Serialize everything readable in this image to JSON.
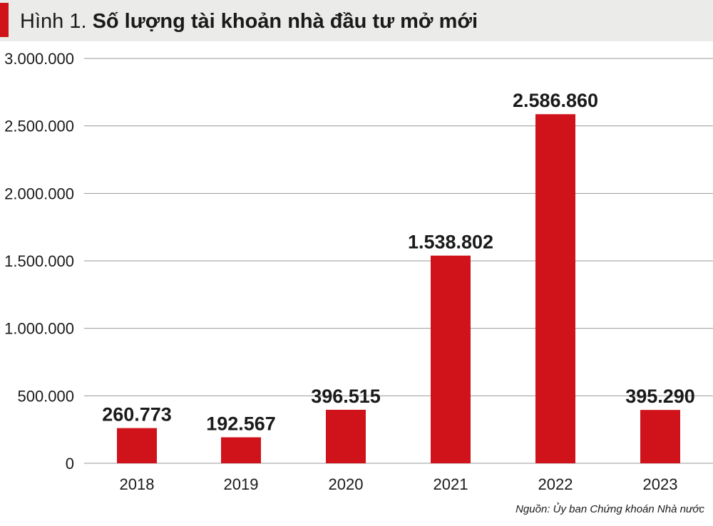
{
  "title_prefix": "Hình 1.",
  "title": "Số lượng tài khoản nhà đầu tư mở mới",
  "source": "Nguồn: Ủy ban Chứng khoán Nhà nước",
  "colors": {
    "bar": "#d0121b",
    "accent": "#d0121b",
    "grid": "#9a9a9a",
    "title_bg": "#ebebea"
  },
  "chart_data": {
    "type": "bar",
    "title": "Số lượng tài khoản nhà đầu tư mở mới",
    "categories": [
      "2018",
      "2019",
      "2020",
      "2021",
      "2022",
      "2023"
    ],
    "values": [
      260773,
      192567,
      396515,
      1538802,
      2586860,
      395290
    ],
    "data_labels": [
      "260.773",
      "192.567",
      "396.515",
      "1.538.802",
      "2.586.860",
      "395.290"
    ],
    "ylim": [
      0,
      3000000
    ],
    "yticks": [
      0,
      500000,
      1000000,
      1500000,
      2000000,
      2500000,
      3000000
    ],
    "ytick_labels": [
      "0",
      "500.000",
      "1.000.000",
      "1.500.000",
      "2.000.000",
      "2.500.000",
      "3.000.000"
    ],
    "xlabel": "",
    "ylabel": "",
    "grid": true,
    "legend": "none"
  }
}
